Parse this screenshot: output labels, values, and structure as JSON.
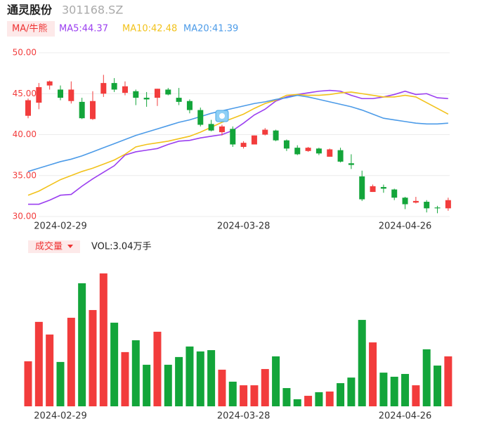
{
  "chart_data": [
    {
      "type": "candlestick",
      "title": "通灵股份",
      "subtitle": "301168.SZ",
      "indicator": "MA/牛熊",
      "categories": [
        null,
        null,
        null,
        "2024-02-29",
        null,
        null,
        null,
        null,
        null,
        null,
        null,
        null,
        null,
        null,
        null,
        null,
        null,
        null,
        null,
        null,
        "2024-03-28",
        null,
        null,
        null,
        null,
        null,
        null,
        null,
        null,
        null,
        null,
        null,
        null,
        null,
        null,
        "2024-04-26",
        null,
        null,
        null,
        null
      ],
      "open": [
        42.3,
        43.9,
        46.0,
        45.5,
        44.1,
        44.0,
        41.9,
        45.0,
        46.3,
        45.1,
        45.3,
        44.5,
        44.5,
        45.5,
        44.5,
        44.1,
        43.0,
        41.3,
        40.3,
        40.7,
        38.5,
        38.8,
        40.0,
        40.5,
        39.3,
        38.4,
        38.0,
        38.3,
        37.3,
        38.1,
        36.5,
        34.9,
        33.0,
        33.6,
        33.3,
        32.3,
        31.7,
        31.8,
        31.1,
        31.0
      ],
      "high": [
        44.4,
        46.3,
        46.6,
        46.0,
        46.5,
        44.5,
        45.3,
        47.3,
        46.9,
        46.5,
        45.5,
        45.2,
        45.6,
        45.7,
        45.7,
        44.3,
        43.3,
        41.8,
        41.2,
        41.0,
        39.2,
        39.9,
        40.8,
        40.6,
        39.4,
        38.7,
        38.5,
        38.4,
        38.3,
        38.4,
        37.6,
        35.6,
        33.9,
        33.9,
        33.4,
        32.4,
        32.4,
        32.0,
        31.3,
        32.3
      ],
      "low": [
        42.0,
        43.1,
        45.5,
        44.2,
        43.8,
        41.9,
        41.8,
        44.6,
        45.2,
        44.8,
        43.6,
        43.4,
        43.5,
        44.8,
        43.6,
        42.6,
        41.0,
        40.4,
        39.9,
        38.5,
        38.3,
        38.8,
        39.9,
        39.2,
        38.0,
        37.5,
        37.9,
        37.5,
        37.3,
        36.6,
        35.8,
        31.9,
        33.0,
        32.9,
        32.0,
        30.9,
        31.6,
        30.5,
        30.4,
        30.7
      ],
      "close": [
        44.2,
        45.8,
        46.5,
        44.5,
        45.5,
        42.0,
        44.1,
        46.3,
        45.5,
        45.9,
        44.5,
        44.3,
        45.6,
        44.9,
        44.0,
        43.0,
        41.2,
        40.5,
        41.0,
        38.8,
        39.0,
        39.9,
        40.6,
        39.3,
        38.3,
        37.6,
        38.4,
        37.7,
        38.2,
        36.7,
        36.3,
        32.1,
        33.7,
        33.4,
        32.3,
        31.5,
        31.9,
        31.0,
        31.0,
        32.0
      ],
      "up_color": "#f23c3c",
      "down_color": "#13a53a",
      "series": [
        {
          "name": "MA5:44.37",
          "color": "#9b3ff0",
          "values": [
            31.5,
            31.5,
            32.0,
            32.6,
            32.7,
            33.7,
            34.6,
            35.4,
            36.2,
            37.5,
            37.9,
            38.1,
            38.3,
            38.8,
            39.2,
            39.3,
            39.6,
            39.8,
            40.0,
            40.5,
            41.4,
            42.4,
            43.1,
            44.1,
            44.6,
            44.9,
            45.1,
            45.3,
            45.4,
            45.3,
            44.8,
            44.4,
            44.4,
            44.6,
            44.9,
            45.3,
            44.9,
            45.0,
            44.5,
            44.4
          ]
        },
        {
          "name": "MA10:42.48",
          "color": "#f2c21b",
          "values": [
            32.6,
            33.1,
            33.8,
            34.5,
            35.0,
            35.5,
            35.9,
            36.4,
            36.9,
            37.6,
            38.5,
            38.8,
            39.0,
            39.2,
            39.5,
            39.8,
            40.3,
            40.9,
            41.5,
            42.0,
            42.5,
            43.2,
            43.8,
            44.2,
            44.8,
            44.9,
            44.8,
            44.8,
            44.9,
            45.1,
            45.2,
            45.0,
            44.8,
            44.6,
            44.6,
            44.8,
            44.6,
            43.9,
            43.2,
            42.5
          ]
        },
        {
          "name": "MA20:41.39",
          "color": "#4c9be8",
          "values": [
            35.5,
            35.9,
            36.3,
            36.7,
            37.0,
            37.4,
            37.9,
            38.4,
            38.9,
            39.4,
            39.9,
            40.3,
            40.7,
            41.1,
            41.5,
            41.8,
            42.2,
            42.6,
            42.9,
            43.2,
            43.5,
            43.8,
            44.0,
            44.3,
            44.5,
            44.8,
            44.6,
            44.3,
            44.0,
            43.7,
            43.4,
            43.0,
            42.5,
            42.0,
            41.8,
            41.6,
            41.4,
            41.3,
            41.3,
            41.4
          ]
        }
      ],
      "ylim": [
        30,
        50
      ],
      "yticks": [
        {
          "value": 30,
          "label": "30.00"
        },
        {
          "value": 35,
          "label": "35.00"
        },
        {
          "value": 40,
          "label": "40.00"
        },
        {
          "value": 45,
          "label": "45.00"
        },
        {
          "value": 50,
          "label": "50.00"
        }
      ],
      "grid": true
    },
    {
      "type": "bar",
      "title": "成交量",
      "label": "VOL:3.04万手",
      "categories": [
        null,
        null,
        null,
        "2024-02-29",
        null,
        null,
        null,
        null,
        null,
        null,
        null,
        null,
        null,
        null,
        null,
        null,
        null,
        null,
        null,
        null,
        "2024-03-28",
        null,
        null,
        null,
        null,
        null,
        null,
        null,
        null,
        null,
        null,
        null,
        null,
        null,
        null,
        "2024-04-26",
        null,
        null,
        null,
        null
      ],
      "values": [
        2.74,
        5.14,
        4.37,
        2.7,
        5.39,
        7.49,
        5.86,
        8.09,
        5.09,
        3.3,
        4.02,
        2.53,
        4.54,
        2.53,
        3.0,
        3.64,
        3.34,
        3.42,
        2.23,
        1.5,
        1.28,
        1.28,
        2.27,
        3.04,
        1.11,
        0.43,
        0.64,
        0.86,
        0.9,
        1.41,
        1.75,
        5.26,
        3.89,
        2.05,
        1.8,
        1.97,
        1.28,
        3.47,
        2.48,
        3.04
      ],
      "ylim": [
        0,
        8.9
      ]
    }
  ]
}
